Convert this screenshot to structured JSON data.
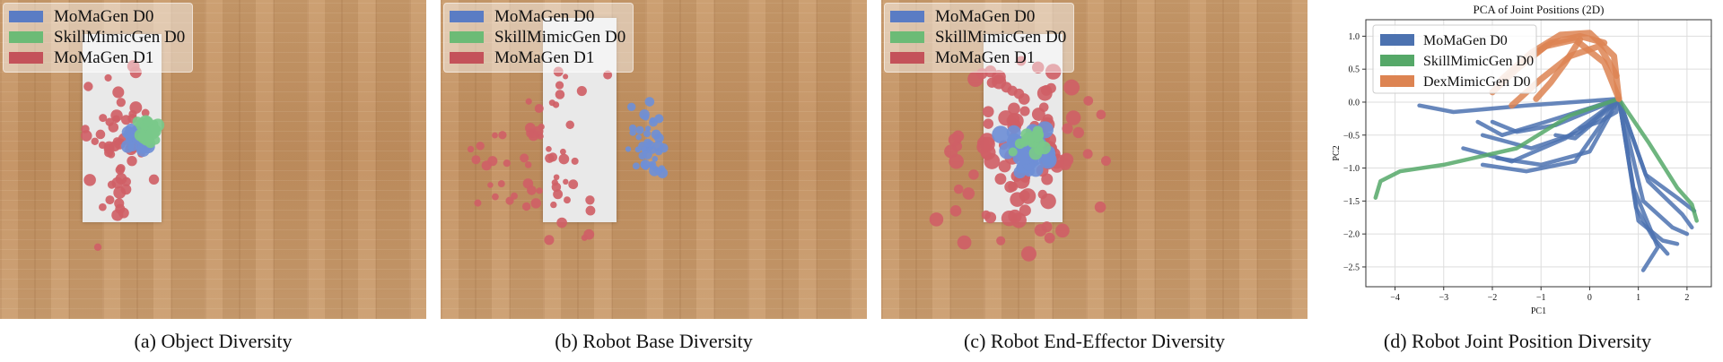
{
  "legend_photo": [
    {
      "label": "MoMaGen D0",
      "color": "#5a7cc4"
    },
    {
      "label": "SkillMimicGen D0",
      "color": "#6cbb76"
    },
    {
      "label": "MoMaGen D1",
      "color": "#c4525a"
    }
  ],
  "captions": {
    "a": "(a) Object Diversity",
    "b": "(b) Robot Base Diversity",
    "c": "(c) Robot End-Effector Diversity",
    "d": "(d) Robot Joint Position Diversity"
  },
  "colors": {
    "blue": "#4c72b0",
    "green": "#55a868",
    "orange": "#dd8452",
    "red": "#c4525a"
  },
  "chart_data": {
    "type": "line",
    "title": "PCA of Joint Positions (2D)",
    "xlabel": "PC1",
    "ylabel": "PC2",
    "xlim": [
      -4.6,
      2.5
    ],
    "ylim": [
      -2.8,
      1.25
    ],
    "xticks": [
      -4,
      -3,
      -2,
      -1,
      0,
      1,
      2
    ],
    "yticks": [
      1.0,
      0.5,
      0.0,
      -0.5,
      -1.0,
      -1.5,
      -2.0,
      -2.5
    ],
    "ytick_labels": [
      "1.0",
      "0.5",
      "0.0",
      "−0.5",
      "−1.0",
      "−1.5",
      "−2.0",
      "−2.5"
    ],
    "xtick_labels": [
      "−4",
      "−3",
      "−2",
      "−1",
      "0",
      "1",
      "2"
    ],
    "grid": true,
    "legend_position": "top-left",
    "series": [
      {
        "name": "MoMaGen D0",
        "color": "#4c72b0",
        "lines": [
          [
            [
              0.6,
              0.05
            ],
            [
              -1.3,
              -0.05
            ],
            [
              -2.8,
              -0.15
            ],
            [
              -3.5,
              -0.05
            ]
          ],
          [
            [
              0.6,
              0.05
            ],
            [
              -0.9,
              -0.3
            ],
            [
              -1.8,
              -0.5
            ],
            [
              -2.3,
              -0.3
            ]
          ],
          [
            [
              0.6,
              0.05
            ],
            [
              -0.5,
              -0.55
            ],
            [
              -1.6,
              -0.9
            ],
            [
              -2.6,
              -0.7
            ]
          ],
          [
            [
              0.6,
              0.05
            ],
            [
              -0.2,
              -0.45
            ],
            [
              -1.2,
              -0.7
            ],
            [
              -2.2,
              -0.5
            ]
          ],
          [
            [
              0.6,
              0.05
            ],
            [
              -0.7,
              -0.35
            ],
            [
              -1.5,
              -0.45
            ],
            [
              -2.0,
              -0.3
            ]
          ],
          [
            [
              0.6,
              0.05
            ],
            [
              0.0,
              -0.75
            ],
            [
              -1.0,
              -0.95
            ],
            [
              -1.9,
              -0.85
            ]
          ],
          [
            [
              0.6,
              0.05
            ],
            [
              -0.3,
              -0.9
            ],
            [
              -1.3,
              -1.05
            ],
            [
              -2.2,
              -0.95
            ]
          ],
          [
            [
              0.6,
              0.05
            ],
            [
              0.1,
              -0.3
            ],
            [
              -0.3,
              -0.55
            ],
            [
              -0.7,
              -0.5
            ]
          ],
          [
            [
              0.6,
              0.05
            ],
            [
              1.2,
              -1.2
            ],
            [
              1.9,
              -1.7
            ],
            [
              2.1,
              -1.9
            ]
          ],
          [
            [
              0.6,
              0.05
            ],
            [
              1.1,
              -1.5
            ],
            [
              1.7,
              -1.9
            ],
            [
              2.0,
              -2.0
            ]
          ],
          [
            [
              0.6,
              0.05
            ],
            [
              1.0,
              -1.8
            ],
            [
              1.5,
              -2.1
            ],
            [
              1.8,
              -2.15
            ]
          ],
          [
            [
              0.6,
              0.05
            ],
            [
              0.95,
              -1.6
            ],
            [
              1.3,
              -2.05
            ],
            [
              1.6,
              -2.3
            ]
          ],
          [
            [
              0.6,
              0.05
            ],
            [
              0.9,
              -1.3
            ],
            [
              1.4,
              -2.2
            ],
            [
              1.1,
              -2.55
            ]
          ],
          [
            [
              0.6,
              0.05
            ],
            [
              1.15,
              -1.1
            ],
            [
              1.8,
              -1.45
            ],
            [
              2.15,
              -1.65
            ]
          ],
          [
            [
              0.6,
              0.05
            ],
            [
              0.55,
              -0.15
            ],
            [
              0.2,
              -0.3
            ],
            [
              -0.2,
              -0.4
            ]
          ]
        ]
      },
      {
        "name": "SkillMimicGen D0",
        "color": "#55a868",
        "lines": [
          [
            [
              0.6,
              0.05
            ],
            [
              -0.4,
              -0.2
            ],
            [
              -1.5,
              -0.7
            ],
            [
              -3.0,
              -0.95
            ],
            [
              -3.9,
              -1.05
            ],
            [
              -4.3,
              -1.2
            ],
            [
              -4.4,
              -1.45
            ]
          ],
          [
            [
              0.6,
              0.05
            ],
            [
              1.2,
              -0.6
            ],
            [
              1.8,
              -1.3
            ],
            [
              2.1,
              -1.55
            ],
            [
              2.2,
              -1.8
            ]
          ]
        ]
      },
      {
        "name": "DexMimicGen D0",
        "color": "#dd8452",
        "lines": [
          [
            [
              -1.8,
              0.35
            ],
            [
              -1.2,
              0.75
            ],
            [
              -0.6,
              1.02
            ],
            [
              0.0,
              1.05
            ],
            [
              0.5,
              0.7
            ],
            [
              0.6,
              0.05
            ]
          ],
          [
            [
              -2.0,
              0.15
            ],
            [
              -1.5,
              0.5
            ],
            [
              -0.9,
              0.85
            ],
            [
              -0.3,
              0.95
            ],
            [
              0.3,
              0.6
            ],
            [
              0.6,
              0.05
            ]
          ],
          [
            [
              -1.6,
              -0.05
            ],
            [
              -1.0,
              0.35
            ],
            [
              -0.4,
              0.7
            ],
            [
              0.2,
              0.85
            ],
            [
              0.55,
              0.4
            ]
          ],
          [
            [
              -1.4,
              0.6
            ],
            [
              -0.8,
              0.9
            ],
            [
              -0.2,
              1.0
            ],
            [
              0.3,
              0.9
            ]
          ],
          [
            [
              -0.2,
              0.95
            ],
            [
              -0.5,
              0.6
            ],
            [
              -0.8,
              0.3
            ],
            [
              -1.1,
              0.05
            ]
          ]
        ]
      }
    ]
  }
}
